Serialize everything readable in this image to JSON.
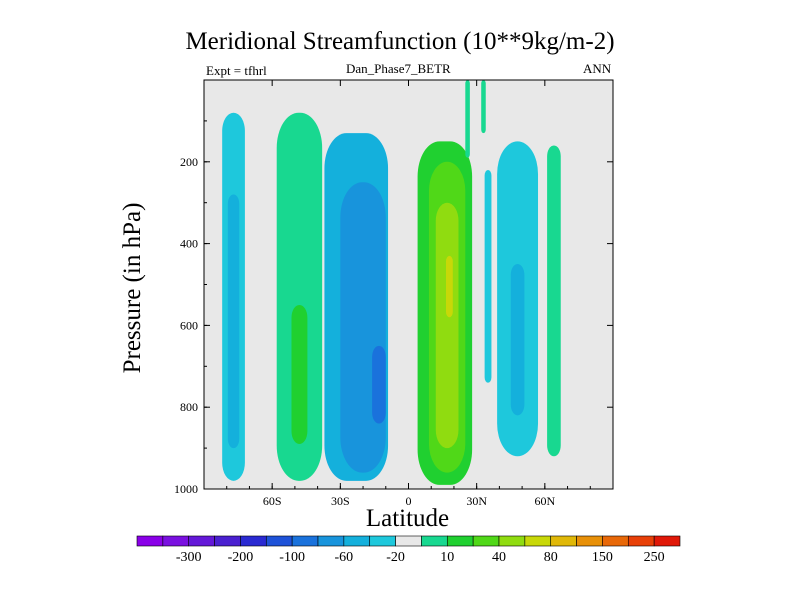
{
  "chart_data": {
    "type": "contour",
    "title": "Meridional Streamfunction (10**9kg/m-2)",
    "subtitle_left": "Expt = tfhrl",
    "subtitle_center": "Dan_Phase7_BETR",
    "subtitle_right": "ANN",
    "xlabel": "Latitude",
    "ylabel": "Pressure (in hPa)",
    "xlim": [
      -90,
      90
    ],
    "ylim": [
      1000,
      0
    ],
    "x_ticks": [
      {
        "value": -60,
        "label": "60S"
      },
      {
        "value": -30,
        "label": "30S"
      },
      {
        "value": 0,
        "label": "0"
      },
      {
        "value": 30,
        "label": "30N"
      },
      {
        "value": 60,
        "label": "60N"
      }
    ],
    "y_ticks": [
      {
        "value": 200,
        "label": "200"
      },
      {
        "value": 400,
        "label": "400"
      },
      {
        "value": 600,
        "label": "600"
      },
      {
        "value": 800,
        "label": "800"
      },
      {
        "value": 1000,
        "label": "1000"
      }
    ],
    "colorbar": {
      "colors": [
        "#8a00e8",
        "#7a10e0",
        "#6418d8",
        "#4a20d0",
        "#2a2ad2",
        "#1e52d8",
        "#1a72dc",
        "#1894dc",
        "#14b0dc",
        "#1ec8dc",
        "#e8e8e8",
        "#18d890",
        "#20d030",
        "#50d818",
        "#90dc10",
        "#c8d808",
        "#e0b808",
        "#e89008",
        "#e86808",
        "#e84008",
        "#e01808"
      ],
      "labels": [
        {
          "after_index": 1,
          "text": "-300"
        },
        {
          "after_index": 3,
          "text": "-200"
        },
        {
          "after_index": 5,
          "text": "-100"
        },
        {
          "after_index": 7,
          "text": "-60"
        },
        {
          "after_index": 9,
          "text": "-20"
        },
        {
          "after_index": 11,
          "text": "10"
        },
        {
          "after_index": 13,
          "text": "40"
        },
        {
          "after_index": 15,
          "text": "80"
        },
        {
          "after_index": 17,
          "text": "150"
        },
        {
          "after_index": 19,
          "text": "250"
        }
      ]
    },
    "cells": [
      {
        "name": "cell-polar-south-weak",
        "lat": -77,
        "p_top": 80,
        "p_bot": 980,
        "half_width": 5,
        "level": -10
      },
      {
        "name": "cell-polar-south-core",
        "lat": -77,
        "p_top": 280,
        "p_bot": 900,
        "half_width": 2.5,
        "level": -20
      },
      {
        "name": "cell-ferrel-south-weak",
        "lat": -48,
        "p_top": 80,
        "p_bot": 980,
        "half_width": 10,
        "level": 10
      },
      {
        "name": "cell-ferrel-south-core",
        "lat": -48,
        "p_top": 550,
        "p_bot": 890,
        "half_width": 3.5,
        "level": 20
      },
      {
        "name": "cell-hadley-south-outer",
        "lat": -23,
        "p_top": 130,
        "p_bot": 980,
        "half_width": 14,
        "level": -20
      },
      {
        "name": "cell-hadley-south-mid",
        "lat": -20,
        "p_top": 250,
        "p_bot": 960,
        "half_width": 10,
        "level": -40
      },
      {
        "name": "cell-hadley-south-core",
        "lat": -13,
        "p_top": 650,
        "p_bot": 840,
        "half_width": 3,
        "level": -60
      },
      {
        "name": "cell-hadley-north-outer",
        "lat": 16,
        "p_top": 150,
        "p_bot": 990,
        "half_width": 12,
        "level": 20
      },
      {
        "name": "cell-hadley-north-mid",
        "lat": 17,
        "p_top": 200,
        "p_bot": 960,
        "half_width": 8,
        "level": 40
      },
      {
        "name": "cell-hadley-north-core",
        "lat": 17,
        "p_top": 300,
        "p_bot": 900,
        "half_width": 5,
        "level": 60
      },
      {
        "name": "cell-hadley-north-peak",
        "lat": 18,
        "p_top": 430,
        "p_bot": 580,
        "half_width": 1.5,
        "level": 80
      },
      {
        "name": "cell-ferrel-north-weak",
        "lat": 48,
        "p_top": 150,
        "p_bot": 920,
        "half_width": 9,
        "level": -10
      },
      {
        "name": "cell-ferrel-north-core",
        "lat": 48,
        "p_top": 450,
        "p_bot": 820,
        "half_width": 3,
        "level": -20
      },
      {
        "name": "cell-polar-north",
        "lat": 64,
        "p_top": 160,
        "p_bot": 920,
        "half_width": 3,
        "level": 10
      },
      {
        "name": "cell-north-wedge",
        "lat": 35,
        "p_top": 220,
        "p_bot": 740,
        "half_width": 1.5,
        "level": -10
      },
      {
        "name": "cell-strat-north-a",
        "lat": 26,
        "p_top": 0,
        "p_bot": 190,
        "half_width": 1,
        "level": 10
      },
      {
        "name": "cell-strat-north-b",
        "lat": 33,
        "p_top": 0,
        "p_bot": 130,
        "half_width": 1,
        "level": 10
      }
    ]
  }
}
